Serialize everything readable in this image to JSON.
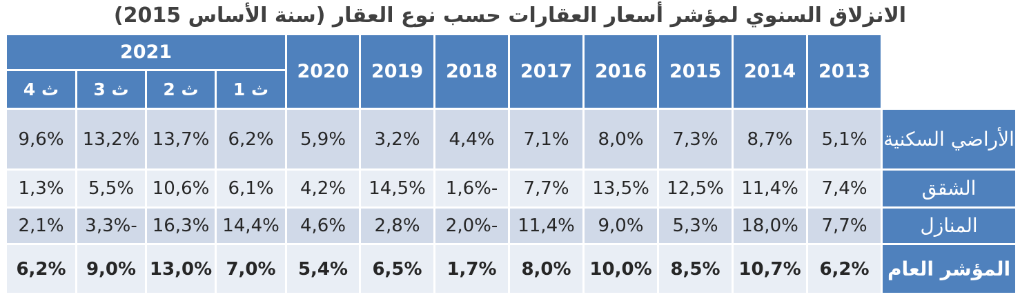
{
  "title": "الانزلاق السنوي لمؤشر أسعار العقارات حسب نوع العقار (سنة الأساس 2015)",
  "chart_data": {
    "type": "table",
    "title": "الانزلاق السنوي لمؤشر أسعار العقارات حسب نوع العقار (سنة الأساس 2015)",
    "years": [
      "2013",
      "2014",
      "2015",
      "2016",
      "2017",
      "2018",
      "2019",
      "2020"
    ],
    "year_2021": "2021",
    "quarters_2021": [
      "ث 1",
      "ث 2",
      "ث 3",
      "ث 4"
    ],
    "rows": [
      {
        "label": "الأراضي السكنية",
        "values": [
          "5,1%",
          "8,7%",
          "7,3%",
          "8,0%",
          "7,1%",
          "4,4%",
          "3,2%",
          "5,9%",
          "6,2%",
          "13,7%",
          "13,2%",
          "9,6%"
        ]
      },
      {
        "label": "الشقق",
        "values": [
          "7,4%",
          "11,4%",
          "12,5%",
          "13,5%",
          "7,7%",
          "-1,6%",
          "14,5%",
          "4,2%",
          "6,1%",
          "10,6%",
          "5,5%",
          "1,3%"
        ]
      },
      {
        "label": "المنازل",
        "values": [
          "7,7%",
          "18,0%",
          "5,3%",
          "9,0%",
          "11,4%",
          "-2,0%",
          "2,8%",
          "4,6%",
          "14,4%",
          "16,3%",
          "-3,3%",
          "2,1%"
        ]
      },
      {
        "label": "المؤشر العام",
        "values": [
          "6,2%",
          "10,7%",
          "8,5%",
          "10,0%",
          "8,0%",
          "1,7%",
          "6,5%",
          "5,4%",
          "7,0%",
          "13,0%",
          "9,0%",
          "6,2%"
        ]
      }
    ]
  },
  "colors": {
    "header": "#4f81bd",
    "band_dark": "#d0d9e8",
    "band_light": "#e9eef5"
  }
}
